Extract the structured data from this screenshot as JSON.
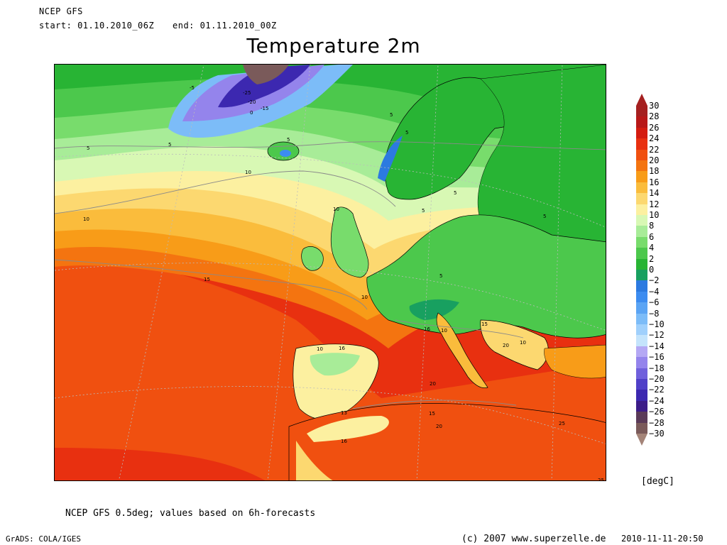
{
  "header": {
    "model": "NCEP GFS",
    "start": "start: 01.10.2010_06Z",
    "end": "end: 01.11.2010_00Z",
    "title": "Temperature 2m"
  },
  "colorbar": {
    "unit": "[degC]",
    "levels": [
      {
        "label": "30",
        "color": "#a52020"
      },
      {
        "label": "28",
        "color": "#b81818"
      },
      {
        "label": "26",
        "color": "#d41c10"
      },
      {
        "label": "24",
        "color": "#e83010"
      },
      {
        "label": "22",
        "color": "#f05010"
      },
      {
        "label": "20",
        "color": "#f47410"
      },
      {
        "label": "18",
        "color": "#f89c18"
      },
      {
        "label": "16",
        "color": "#fabc3c"
      },
      {
        "label": "14",
        "color": "#fcd870"
      },
      {
        "label": "12",
        "color": "#fcf0a0"
      },
      {
        "label": "10",
        "color": "#d8f8b4"
      },
      {
        "label": "8",
        "color": "#a8ec98"
      },
      {
        "label": "6",
        "color": "#78dc6c"
      },
      {
        "label": "4",
        "color": "#4cc84c"
      },
      {
        "label": "2",
        "color": "#28b434"
      },
      {
        "label": "0",
        "color": "#18a060"
      },
      {
        "label": "−2",
        "color": "#2c7ae0"
      },
      {
        "label": "−4",
        "color": "#3c8cf0"
      },
      {
        "label": "−6",
        "color": "#5aa4f4"
      },
      {
        "label": "−8",
        "color": "#7cbcf8"
      },
      {
        "label": "−10",
        "color": "#a0d0fc"
      },
      {
        "label": "−12",
        "color": "#c4e4fc"
      },
      {
        "label": "−14",
        "color": "#b4a8f4"
      },
      {
        "label": "−16",
        "color": "#9484ec"
      },
      {
        "label": "−18",
        "color": "#7060dc"
      },
      {
        "label": "−20",
        "color": "#5040c8"
      },
      {
        "label": "−22",
        "color": "#3c28b0"
      },
      {
        "label": "−24",
        "color": "#3c1c88"
      },
      {
        "label": "−26",
        "color": "#5a3a58"
      },
      {
        "label": "−28",
        "color": "#7a5a5a"
      },
      {
        "label": "−30",
        "color": "#a48478"
      }
    ]
  },
  "map": {
    "contour_labels": [
      "-5",
      "-25",
      "-20",
      "-15",
      "0",
      "5",
      "5",
      "5",
      "10",
      "10",
      "10",
      "10",
      "5",
      "5",
      "5",
      "5",
      "5",
      "5",
      "15",
      "16",
      "10",
      "15",
      "20",
      "10",
      "10",
      "16",
      "20",
      "15",
      "13",
      "20",
      "16",
      "25",
      "25"
    ]
  },
  "footer": {
    "note": "NCEP GFS 0.5deg; values based on 6h-forecasts",
    "software": "GrADS: COLA/IGES",
    "copyright": "(c) 2007 www.superzelle.de",
    "timestamp": "2010-11-11-20:50"
  }
}
